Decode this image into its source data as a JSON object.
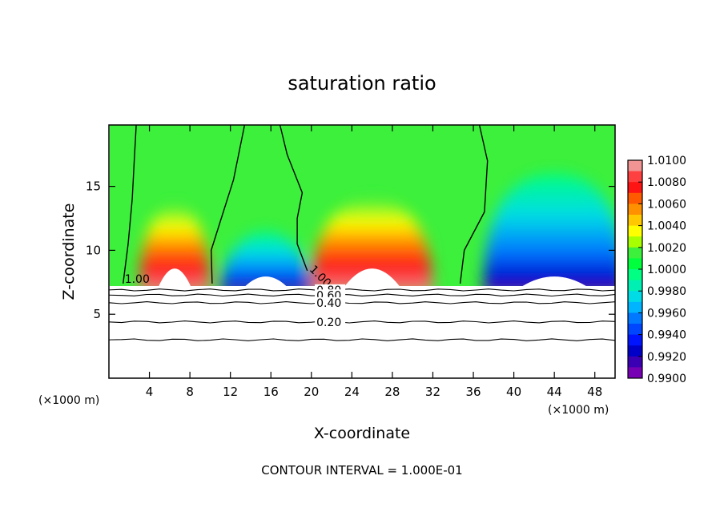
{
  "chart_data": {
    "type": "heatmap",
    "title": "saturation ratio",
    "xlabel": "X-coordinate",
    "ylabel": "Z-coordinate",
    "x_unit_left": "(×1000 m)",
    "x_unit_right": "(×1000 m)",
    "footer": "CONTOUR INTERVAL = 1.000E-01",
    "xlim": [
      0,
      50
    ],
    "ylim": [
      0,
      19.8
    ],
    "x_ticks": [
      4,
      8,
      12,
      16,
      20,
      24,
      28,
      32,
      36,
      40,
      44,
      48
    ],
    "x_tick_labels": [
      "4",
      "8",
      "12",
      "16",
      "20",
      "24",
      "28",
      "32",
      "36",
      "40",
      "44",
      "48"
    ],
    "y_ticks": [
      5,
      10,
      15
    ],
    "y_tick_labels": [
      "5",
      "10",
      "15"
    ],
    "colorbar": {
      "min": 0.99,
      "max": 1.01,
      "tick_values": [
        1.01,
        1.008,
        1.006,
        1.004,
        1.002,
        1.0,
        0.998,
        0.996,
        0.994,
        0.992,
        0.99
      ],
      "tick_labels": [
        "1.0100",
        "1.0080",
        "1.0060",
        "1.0040",
        "1.0020",
        "1.0000",
        "0.9980",
        "0.9960",
        "0.9940",
        "0.9920",
        "0.9900"
      ],
      "colors": [
        "#f09494",
        "#ff4040",
        "#ff1414",
        "#ff5a00",
        "#ff9100",
        "#ffc800",
        "#ffff00",
        "#a8ff00",
        "#3cf03c",
        "#00ff3c",
        "#00ff82",
        "#00f0b4",
        "#00dce6",
        "#00b4ff",
        "#0078ff",
        "#0046ff",
        "#0014ff",
        "#0000c8",
        "#3c00b4",
        "#7800b4"
      ]
    },
    "field_features": [
      {
        "kind": "moist-plume",
        "center_x": 6.5,
        "top_z": 13.5,
        "half_width_x": 3.5,
        "max_value": 1.009
      },
      {
        "kind": "dry-plume",
        "center_x": 15.5,
        "top_z": 11.5,
        "half_width_x": 4.5,
        "min_value": 0.993
      },
      {
        "kind": "moist-plume",
        "center_x": 26,
        "top_z": 14,
        "half_width_x": 6,
        "max_value": 1.008
      },
      {
        "kind": "dry-region",
        "center_x": 44,
        "top_z": 16,
        "half_width_x": 7,
        "min_value": 0.991
      }
    ],
    "cloud_base_z": 7.2,
    "contours": [
      {
        "label": "1.00",
        "kind": "saturation-line",
        "points": [
          [
            1.4,
            7.4
          ],
          [
            1.9,
            10.5
          ],
          [
            2.3,
            14.0
          ],
          [
            2.5,
            17.0
          ],
          [
            2.7,
            19.8
          ]
        ]
      },
      {
        "label": "",
        "kind": "saturation-line",
        "points": [
          [
            10.2,
            7.4
          ],
          [
            10.1,
            10.0
          ],
          [
            11.1,
            12.5
          ],
          [
            12.3,
            15.5
          ],
          [
            13.4,
            19.8
          ]
        ]
      },
      {
        "label": "1.00",
        "kind": "saturation-line",
        "points": [
          [
            19.6,
            8.4
          ],
          [
            18.6,
            10.5
          ],
          [
            18.6,
            12.5
          ],
          [
            19.1,
            14.5
          ],
          [
            17.6,
            17.5
          ],
          [
            16.9,
            19.8
          ]
        ]
      },
      {
        "label": "",
        "kind": "saturation-line",
        "points": [
          [
            34.7,
            7.4
          ],
          [
            35.1,
            10.0
          ],
          [
            37.1,
            13.0
          ],
          [
            37.4,
            17.0
          ],
          [
            36.6,
            19.8
          ]
        ]
      },
      {
        "label": "0.80",
        "kind": "level",
        "points": [
          [
            0,
            6.9
          ],
          [
            50,
            6.9
          ]
        ]
      },
      {
        "label": "0.60",
        "kind": "level",
        "points": [
          [
            0,
            6.5
          ],
          [
            50,
            6.5
          ]
        ]
      },
      {
        "label": "0.40",
        "kind": "level",
        "points": [
          [
            0,
            5.9
          ],
          [
            50,
            5.9
          ]
        ]
      },
      {
        "label": "0.20",
        "kind": "level",
        "points": [
          [
            0,
            4.4
          ],
          [
            50,
            4.4
          ]
        ]
      },
      {
        "label": "",
        "kind": "level",
        "points": [
          [
            0,
            3.0
          ],
          [
            50,
            3.0
          ]
        ]
      }
    ]
  }
}
